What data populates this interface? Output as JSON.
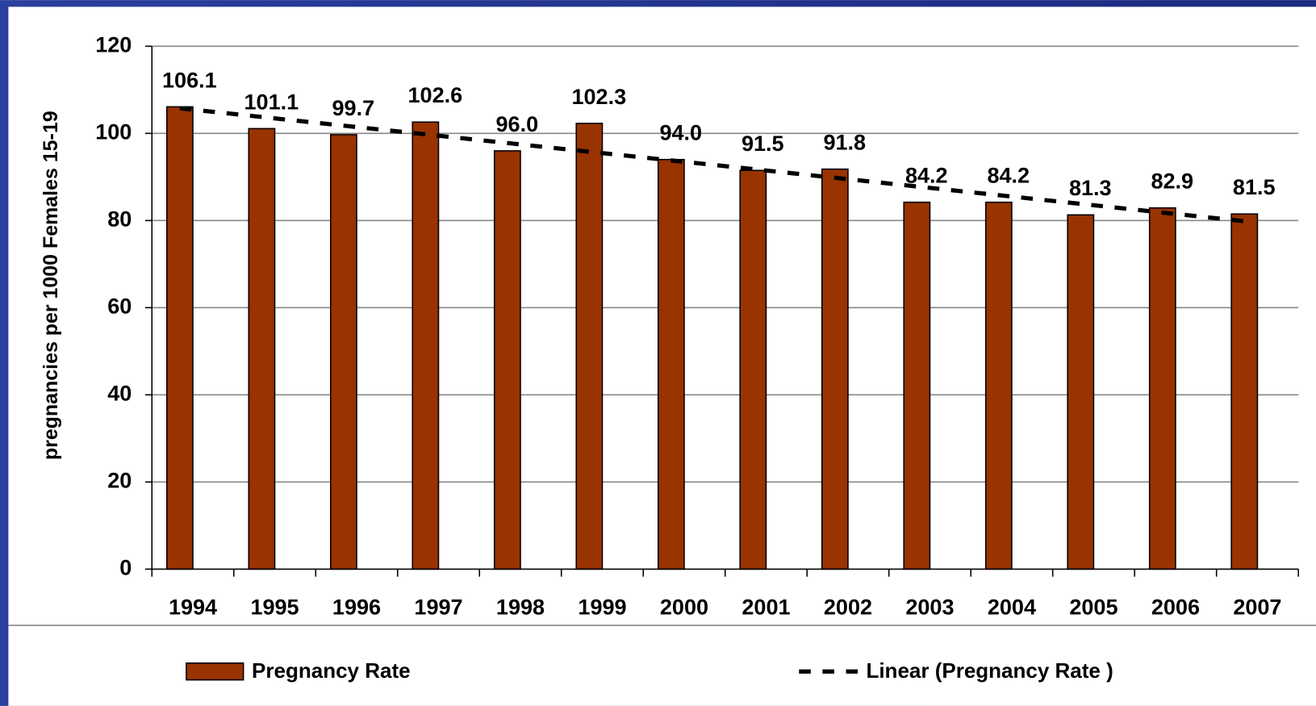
{
  "chart_data": {
    "type": "bar",
    "y_axis_label": "pregnancies per 1000 Females 15-19",
    "categories": [
      "1994",
      "1995",
      "1996",
      "1997",
      "1998",
      "1999",
      "2000",
      "2001",
      "2002",
      "2003",
      "2004",
      "2005",
      "2006",
      "2007"
    ],
    "series": [
      {
        "name": "Pregnancy Rate",
        "color": "#993300",
        "values": [
          106.1,
          101.1,
          99.7,
          102.6,
          96.0,
          102.3,
          94.0,
          91.5,
          91.8,
          84.2,
          84.2,
          81.3,
          82.9,
          81.5
        ],
        "value_labels": [
          "106.1",
          "101.1",
          "99.7",
          "102.6",
          "96.0",
          "102.3",
          "94.0",
          "91.5",
          "91.8",
          "84.2",
          "84.2",
          "81.3",
          "82.9",
          "81.5"
        ]
      }
    ],
    "trendline": {
      "name": "Linear (Pregnancy Rate )",
      "type": "linear",
      "color": "#000000"
    },
    "ylim": [
      0,
      120
    ],
    "yticks": [
      0,
      20,
      40,
      60,
      80,
      100,
      120
    ],
    "grid": true
  }
}
